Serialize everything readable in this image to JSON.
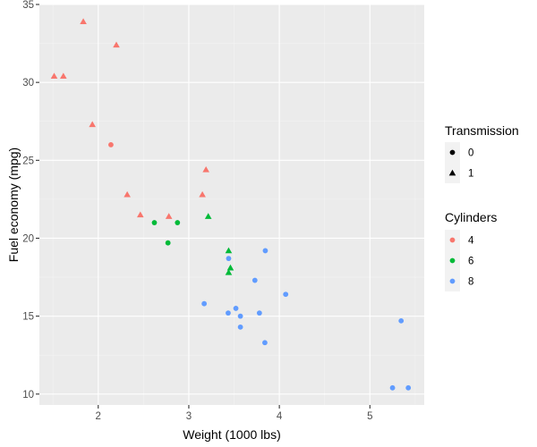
{
  "chart_data": {
    "type": "scatter",
    "xlabel": "Weight (1000 lbs)",
    "ylabel": "Fuel economy (mpg)",
    "xlim": [
      1.35,
      5.6
    ],
    "ylim": [
      9.3,
      35.0
    ],
    "x_ticks": [
      2,
      3,
      4,
      5
    ],
    "y_ticks": [
      10,
      15,
      20,
      25,
      30,
      35
    ],
    "grid": true,
    "legend_placement": "right",
    "legends": {
      "shape": {
        "title": "Transmission",
        "entries": [
          {
            "label": "0",
            "shape": "circle"
          },
          {
            "label": "1",
            "shape": "triangle"
          }
        ]
      },
      "color": {
        "title": "Cylinders",
        "entries": [
          {
            "label": "4",
            "color": "#F8766D"
          },
          {
            "label": "6",
            "color": "#00BA38"
          },
          {
            "label": "8",
            "color": "#619CFF"
          }
        ]
      }
    },
    "points": [
      {
        "x": 1.513,
        "y": 30.4,
        "cyl": "4",
        "am": "1"
      },
      {
        "x": 1.615,
        "y": 30.4,
        "cyl": "4",
        "am": "1"
      },
      {
        "x": 1.835,
        "y": 33.9,
        "cyl": "4",
        "am": "1"
      },
      {
        "x": 1.935,
        "y": 27.3,
        "cyl": "4",
        "am": "1"
      },
      {
        "x": 2.14,
        "y": 26.0,
        "cyl": "4",
        "am": "0"
      },
      {
        "x": 2.2,
        "y": 32.4,
        "cyl": "4",
        "am": "1"
      },
      {
        "x": 2.32,
        "y": 22.8,
        "cyl": "4",
        "am": "1"
      },
      {
        "x": 2.465,
        "y": 21.5,
        "cyl": "4",
        "am": "1"
      },
      {
        "x": 2.78,
        "y": 21.4,
        "cyl": "4",
        "am": "1"
      },
      {
        "x": 3.15,
        "y": 22.8,
        "cyl": "4",
        "am": "1"
      },
      {
        "x": 3.19,
        "y": 24.4,
        "cyl": "4",
        "am": "1"
      },
      {
        "x": 2.62,
        "y": 21.0,
        "cyl": "6",
        "am": "0"
      },
      {
        "x": 2.875,
        "y": 21.0,
        "cyl": "6",
        "am": "0"
      },
      {
        "x": 2.77,
        "y": 19.7,
        "cyl": "6",
        "am": "0"
      },
      {
        "x": 3.215,
        "y": 21.4,
        "cyl": "6",
        "am": "1"
      },
      {
        "x": 3.44,
        "y": 19.2,
        "cyl": "6",
        "am": "1"
      },
      {
        "x": 3.44,
        "y": 17.8,
        "cyl": "6",
        "am": "1"
      },
      {
        "x": 3.46,
        "y": 18.1,
        "cyl": "6",
        "am": "1"
      },
      {
        "x": 3.17,
        "y": 15.8,
        "cyl": "8",
        "am": "0"
      },
      {
        "x": 3.435,
        "y": 15.2,
        "cyl": "8",
        "am": "0"
      },
      {
        "x": 3.44,
        "y": 18.7,
        "cyl": "8",
        "am": "0"
      },
      {
        "x": 3.52,
        "y": 15.5,
        "cyl": "8",
        "am": "0"
      },
      {
        "x": 3.57,
        "y": 15.0,
        "cyl": "8",
        "am": "0"
      },
      {
        "x": 3.57,
        "y": 14.3,
        "cyl": "8",
        "am": "0"
      },
      {
        "x": 3.73,
        "y": 17.3,
        "cyl": "8",
        "am": "0"
      },
      {
        "x": 3.78,
        "y": 15.2,
        "cyl": "8",
        "am": "0"
      },
      {
        "x": 3.84,
        "y": 13.3,
        "cyl": "8",
        "am": "0"
      },
      {
        "x": 3.845,
        "y": 19.2,
        "cyl": "8",
        "am": "0"
      },
      {
        "x": 4.07,
        "y": 16.4,
        "cyl": "8",
        "am": "0"
      },
      {
        "x": 5.25,
        "y": 10.4,
        "cyl": "8",
        "am": "0"
      },
      {
        "x": 5.345,
        "y": 14.7,
        "cyl": "8",
        "am": "0"
      },
      {
        "x": 5.424,
        "y": 10.4,
        "cyl": "8",
        "am": "0"
      }
    ]
  }
}
